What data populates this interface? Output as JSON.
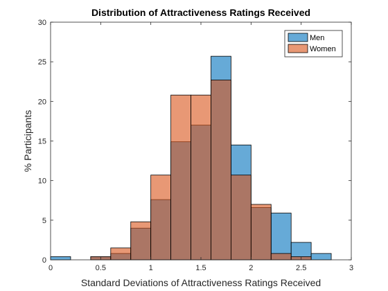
{
  "chart_data": {
    "type": "bar",
    "title": "Distribution of Attractiveness Ratings Received",
    "xlabel": "Standard Deviations of Attractiveness Ratings Received",
    "ylabel": "% Participants",
    "xlim": [
      0,
      3
    ],
    "ylim": [
      0,
      30
    ],
    "xticks": [
      "0",
      "0.5",
      "1",
      "1.5",
      "2",
      "2.5",
      "3"
    ],
    "xtick_values": [
      0,
      0.5,
      1,
      1.5,
      2,
      2.5,
      3
    ],
    "yticks": [
      "0",
      "5",
      "10",
      "15",
      "20",
      "25",
      "30"
    ],
    "ytick_values": [
      0,
      5,
      10,
      15,
      20,
      25,
      30
    ],
    "bin_edges": [
      0,
      0.2,
      0.4,
      0.6,
      0.8,
      1.0,
      1.2,
      1.4,
      1.6,
      1.8,
      2.0,
      2.2,
      2.4,
      2.6,
      2.8
    ],
    "legend_position": "top-right",
    "grid": false,
    "series": [
      {
        "name": "Men",
        "color": "#0072BD",
        "values": [
          0.4,
          0,
          0.4,
          0.8,
          4.0,
          7.6,
          14.9,
          17.0,
          25.7,
          14.5,
          6.6,
          5.9,
          2.2,
          0.8
        ]
      },
      {
        "name": "Women",
        "color": "#D95319",
        "values": [
          0,
          0,
          0.4,
          1.5,
          4.8,
          10.7,
          20.8,
          20.8,
          22.7,
          10.7,
          7.0,
          0.8,
          0.4,
          0
        ]
      }
    ]
  }
}
